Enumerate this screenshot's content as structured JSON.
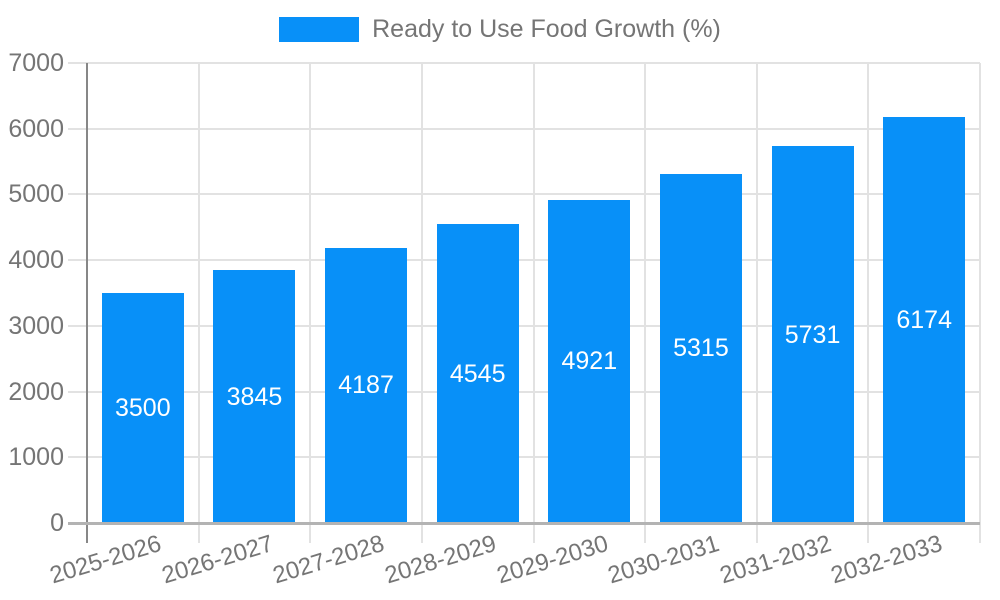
{
  "chart_data": {
    "type": "bar",
    "title": "",
    "legend": {
      "label": "Ready to Use Food Growth (%)",
      "position": "top"
    },
    "categories": [
      "2025-2026",
      "2026-2027",
      "2027-2028",
      "2028-2029",
      "2029-2030",
      "2030-2031",
      "2031-2032",
      "2032-2033"
    ],
    "series": [
      {
        "name": "Ready to Use Food Growth (%)",
        "values": [
          3500,
          3845,
          4187,
          4545,
          4921,
          5315,
          5731,
          6174
        ]
      }
    ],
    "data_labels": [
      "3500",
      "3845",
      "4187",
      "4545",
      "4921",
      "5315",
      "5731",
      "6174"
    ],
    "xlabel": "",
    "ylabel": "",
    "ylim": [
      0,
      7000
    ],
    "yticks": [
      0,
      1000,
      2000,
      3000,
      4000,
      5000,
      6000,
      7000
    ],
    "grid": "both",
    "x_label_rotation_deg": -17
  },
  "colors": {
    "bar": "#0890f8",
    "gridline": "#e2e2e2",
    "y_axis_line": "#878787",
    "x_baseline": "#b3b3b3",
    "axis_text": "#757575",
    "value_text": "#ffffff",
    "background": "#ffffff"
  }
}
